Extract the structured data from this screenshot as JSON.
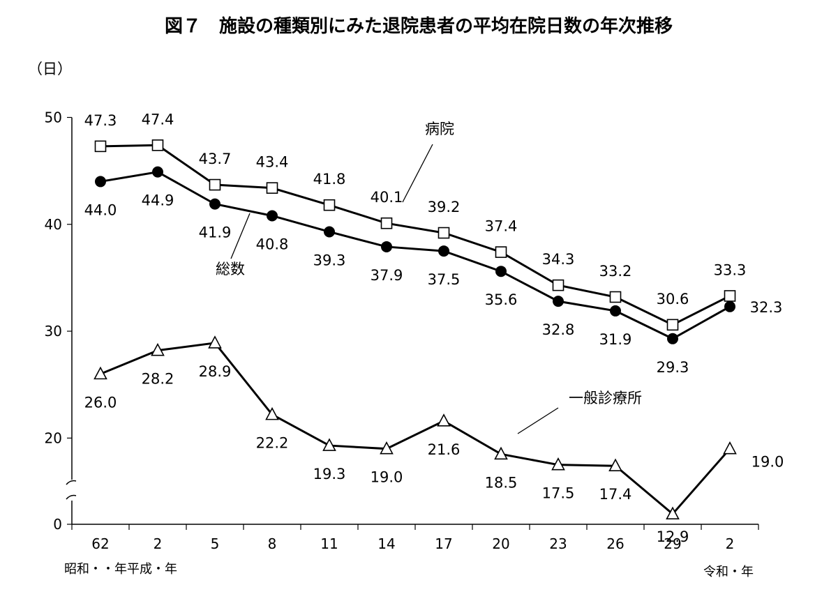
{
  "chart_data": {
    "type": "line",
    "title": "図７　施設の種類別にみた退院患者の平均在院日数の年次推移",
    "ylabel": "（日）",
    "ylim": [
      0,
      50
    ],
    "y_axis_break": [
      0,
      15
    ],
    "y_ticks": [
      "0",
      "20",
      "30",
      "40",
      "50"
    ],
    "categories": [
      "62",
      "2",
      "5",
      "8",
      "11",
      "14",
      "17",
      "20",
      "23",
      "26",
      "29",
      "2"
    ],
    "era_labels": [
      "昭和・・年平成・年",
      "令和・年"
    ],
    "series": [
      {
        "name": "病院",
        "marker": "open-square",
        "values": [
          47.3,
          47.4,
          43.7,
          43.4,
          41.8,
          40.1,
          39.2,
          37.4,
          34.3,
          33.2,
          30.6,
          33.3
        ]
      },
      {
        "name": "総数",
        "marker": "filled-circle",
        "values": [
          44.0,
          44.9,
          41.9,
          40.8,
          39.3,
          37.9,
          37.5,
          35.6,
          32.8,
          31.9,
          29.3,
          32.3
        ]
      },
      {
        "name": "一般診療所",
        "marker": "open-triangle",
        "values": [
          26.0,
          28.2,
          28.9,
          22.2,
          19.3,
          19.0,
          21.6,
          18.5,
          17.5,
          17.4,
          12.9,
          19.0
        ]
      }
    ],
    "value_labels": [
      [
        "47.3",
        "47.4",
        "43.7",
        "43.4",
        "41.8",
        "40.1",
        "39.2",
        "37.4",
        "34.3",
        "33.2",
        "30.6",
        "33.3"
      ],
      [
        "44.0",
        "44.9",
        "41.9",
        "40.8",
        "39.3",
        "37.9",
        "37.5",
        "35.6",
        "32.8",
        "31.9",
        "29.3",
        "32.3"
      ],
      [
        "26.0",
        "28.2",
        "28.9",
        "22.2",
        "19.3",
        "19.0",
        "21.6",
        "18.5",
        "17.5",
        "17.4",
        "12.9",
        "19.0"
      ]
    ],
    "grid": false,
    "legend": "inline labels with leader lines"
  }
}
